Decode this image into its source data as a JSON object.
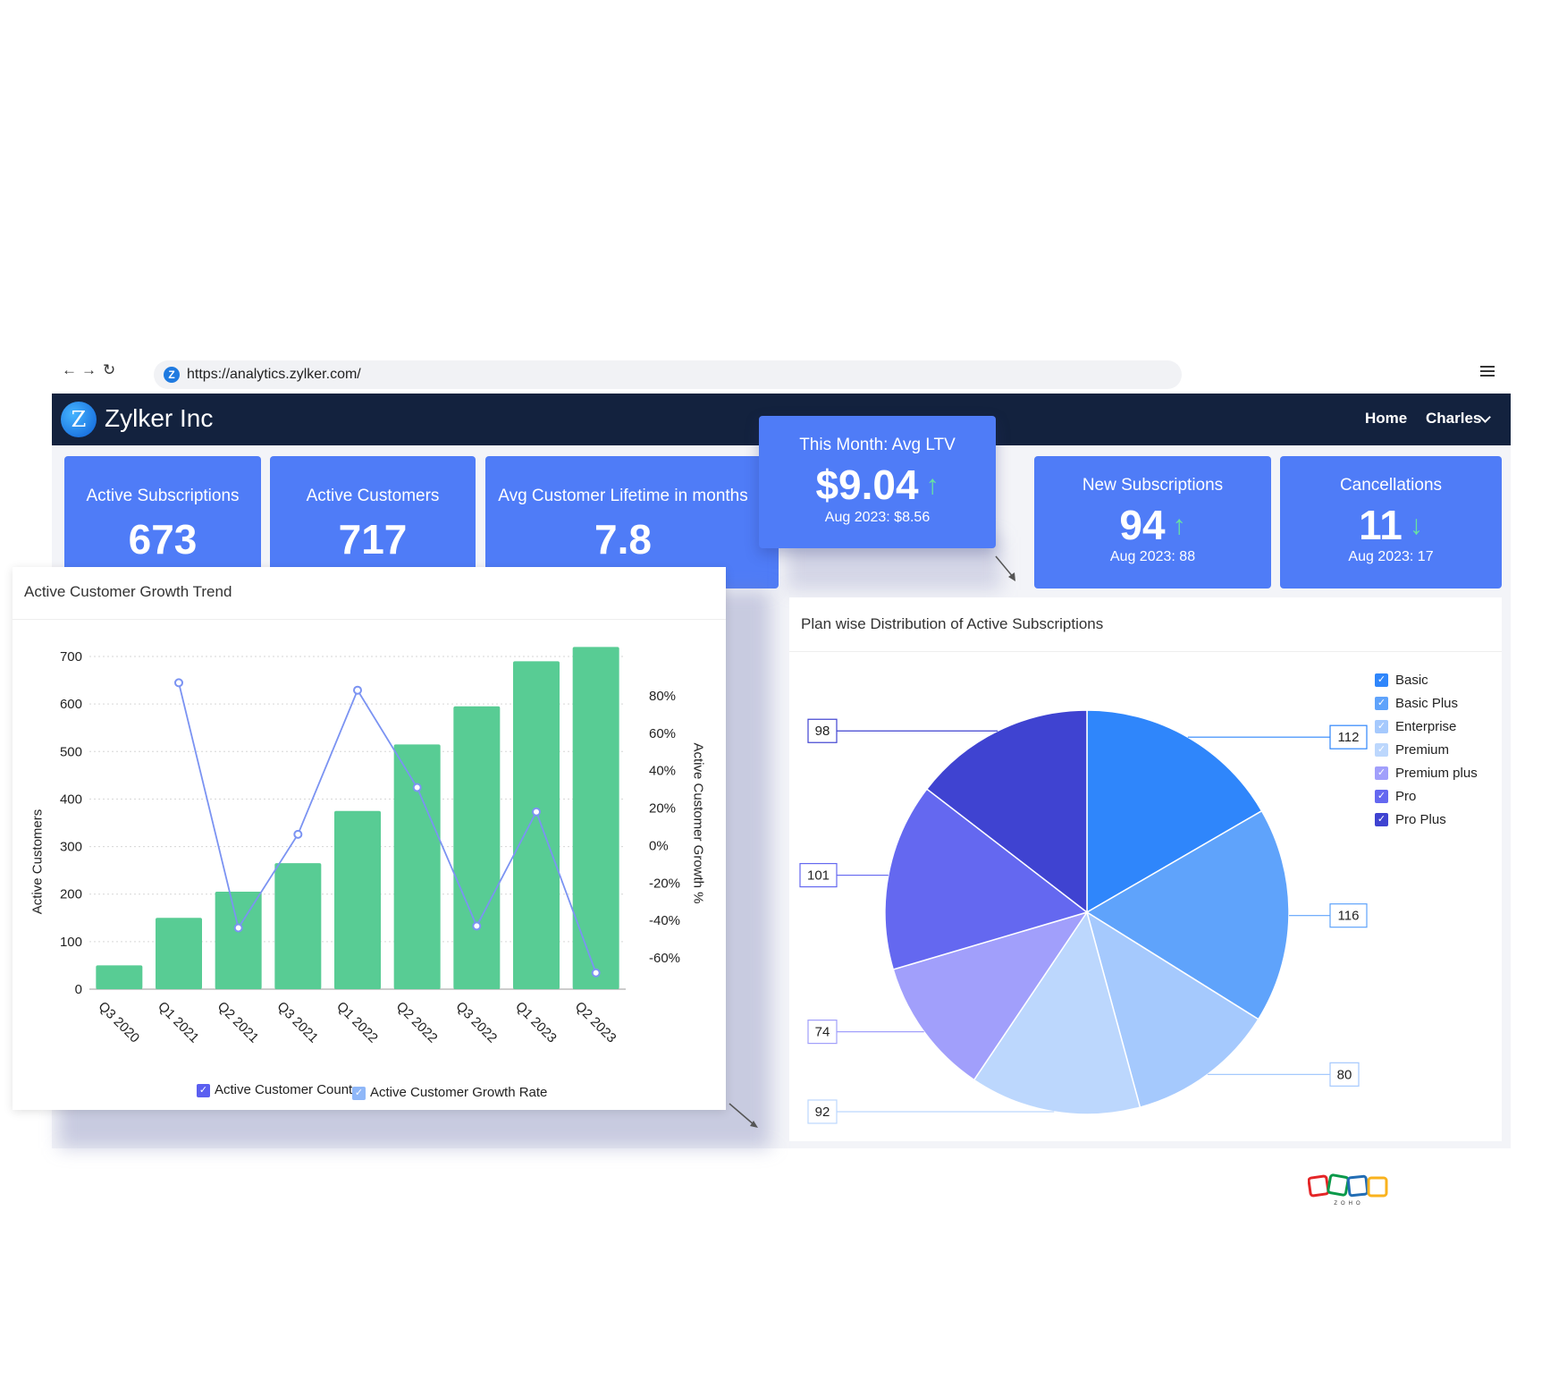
{
  "browser": {
    "url": "https://analytics.zylker.com/",
    "favicon_letter": "Z",
    "back_icon": "←",
    "forward_icon": "→",
    "reload_icon": "↻"
  },
  "header": {
    "logo_letter": "Z",
    "brand": "Zylker Inc",
    "nav_home": "Home",
    "nav_user": "Charles"
  },
  "kpis": {
    "active_subscriptions": {
      "label": "Active Subscriptions",
      "value": "673"
    },
    "active_customers": {
      "label": "Active Customers",
      "value": "717"
    },
    "avg_lifetime": {
      "label": "Avg Customer Lifetime in months",
      "value": "7.8"
    },
    "avg_ltv": {
      "label": "This Month: Avg LTV",
      "value": "$9.04",
      "arrow": "↑",
      "sub": "Aug 2023: $8.56"
    },
    "new_subscriptions": {
      "label": "New Subscriptions",
      "value": "94",
      "arrow": "↑",
      "sub": "Aug 2023: 88"
    },
    "cancellations": {
      "label": "Cancellations",
      "value": "11",
      "arrow": "↓",
      "sub": "Aug 2023: 17"
    }
  },
  "colors": {
    "kpi_bg": "#4f7cf7",
    "header_bg": "#13223e",
    "bar": "#58cc94",
    "line": "#7b93f2",
    "pie": [
      "#2f86fb",
      "#5fa3fb",
      "#a5c9fd",
      "#bcd7fd",
      "#a19ffb",
      "#6468f0",
      "#3f43d1"
    ]
  },
  "growth_chart": {
    "title": "Active Customer Growth Trend",
    "ylabel": "Active Customers",
    "y2label": "Active Customer Growth %",
    "y_ticks": [
      "0",
      "100",
      "200",
      "300",
      "400",
      "500",
      "600",
      "700"
    ],
    "y2_ticks": [
      "-60%",
      "-40%",
      "-20%",
      "0%",
      "20%",
      "40%",
      "60%",
      "80%"
    ],
    "legend": {
      "count": "Active Customer Count",
      "rate": "Active Customer Growth Rate"
    }
  },
  "pie_chart": {
    "title": "Plan wise Distribution of Active Subscriptions",
    "legend": [
      "Basic",
      "Basic Plus",
      "Enterprise",
      "Premium",
      "Premium plus",
      "Pro",
      "Pro Plus"
    ]
  },
  "chart_data": [
    {
      "type": "bar",
      "title": "Active Customer Growth Trend",
      "categories": [
        "Q3 2020",
        "Q1 2021",
        "Q2 2021",
        "Q3 2021",
        "Q1 2022",
        "Q2 2022",
        "Q3 2022",
        "Q1 2023",
        "Q2 2023"
      ],
      "series": [
        {
          "name": "Active Customer Count",
          "type": "bar",
          "axis": "left",
          "values": [
            50,
            150,
            205,
            265,
            375,
            515,
            595,
            690,
            720
          ]
        },
        {
          "name": "Active Customer Growth Rate",
          "type": "line",
          "axis": "right",
          "values": [
            null,
            87,
            -44,
            6,
            83,
            31,
            -43,
            18,
            -68
          ]
        }
      ],
      "ylabel": "Active Customers",
      "y2label": "Active Customer Growth %",
      "ylim": [
        0,
        700
      ],
      "y2lim": [
        -60,
        80
      ],
      "grid": true,
      "legend": "bottom"
    },
    {
      "type": "pie",
      "title": "Plan wise Distribution of Active Subscriptions",
      "labels": [
        "Basic",
        "Basic Plus",
        "Enterprise",
        "Premium",
        "Premium plus",
        "Pro",
        "Pro Plus"
      ],
      "values": [
        112,
        116,
        80,
        92,
        74,
        101,
        98
      ],
      "legend": "right"
    }
  ]
}
